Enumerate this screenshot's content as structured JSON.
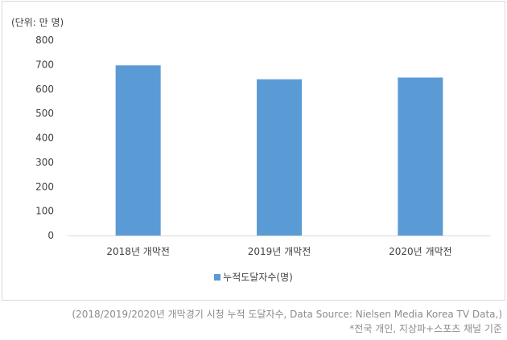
{
  "unit_label": "(단위: 만 명)",
  "footnotes": {
    "line1": "(2018/2019/2020년 개막경기 시청 누적 도달자수, Data Source: Nielsen Media Korea TV Data,)",
    "line2": "*전국 개인, 지상파+스포츠 채널 기준"
  },
  "chart_data": {
    "type": "bar",
    "categories": [
      "2018년 개막전",
      "2019년 개막전",
      "2020년 개막전"
    ],
    "series": [
      {
        "name": "누적도달자수(명)",
        "values": [
          697,
          640,
          647
        ]
      }
    ],
    "ylim": [
      0,
      800
    ],
    "yticks": [
      0,
      100,
      200,
      300,
      400,
      500,
      600,
      700,
      800
    ],
    "grid": false,
    "legend": "bottom",
    "colors": {
      "bar": "#5b9bd5",
      "axis": "#d9d9d9"
    }
  }
}
